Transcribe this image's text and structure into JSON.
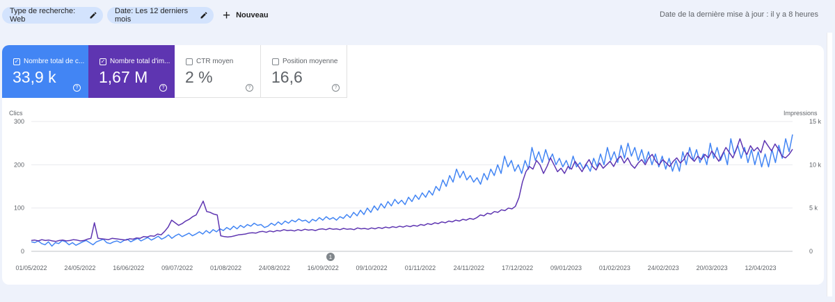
{
  "filters": {
    "search_type": "Type de recherche: Web",
    "date": "Date: Les 12 derniers mois",
    "new_label": "Nouveau"
  },
  "last_update": "Date de la dernière mise à jour : il y a 8 heures",
  "metrics": [
    {
      "label": "Nombre total de c...",
      "value": "33,9 k",
      "checked": true,
      "color": "#4285f4"
    },
    {
      "label": "Nombre total d'im...",
      "value": "1,67 M",
      "checked": true,
      "color": "#5e35b1"
    },
    {
      "label": "CTR moyen",
      "value": "2 %",
      "checked": false
    },
    {
      "label": "Position moyenne",
      "value": "16,6",
      "checked": false
    }
  ],
  "annotation": {
    "label": "1"
  },
  "chart_data": {
    "type": "line",
    "left_axis": {
      "label": "Clics",
      "ticks": [
        "0",
        "100",
        "200",
        "300"
      ],
      "ylim": [
        0,
        300
      ]
    },
    "right_axis": {
      "label": "Impressions",
      "ticks": [
        "0",
        "5 k",
        "10 k",
        "15 k"
      ],
      "ylim": [
        0,
        15000
      ]
    },
    "x_ticks": [
      "01/05/2022",
      "24/05/2022",
      "16/06/2022",
      "09/07/2022",
      "01/08/2022",
      "24/08/2022",
      "16/09/2022",
      "09/10/2022",
      "01/11/2022",
      "24/11/2022",
      "17/12/2022",
      "09/01/2023",
      "01/02/2023",
      "24/02/2023",
      "20/03/2023",
      "12/04/2023"
    ],
    "grid": true,
    "series": [
      {
        "name": "Nombre total de clics",
        "axis": "left",
        "color": "#4285f4",
        "values": [
          22,
          20,
          24,
          18,
          15,
          22,
          12,
          20,
          18,
          25,
          22,
          15,
          20,
          14,
          18,
          22,
          25,
          20,
          15,
          22,
          25,
          28,
          20,
          18,
          22,
          24,
          20,
          25,
          28,
          22,
          26,
          30,
          24,
          28,
          32,
          26,
          30,
          35,
          28,
          32,
          38,
          30,
          36,
          40,
          34,
          38,
          42,
          36,
          40,
          45,
          40,
          48,
          42,
          50,
          45,
          52,
          48,
          55,
          50,
          58,
          52,
          60,
          55,
          62,
          58,
          65,
          60,
          62,
          55,
          58,
          65,
          60,
          68,
          62,
          70,
          65,
          72,
          68,
          75,
          70,
          72,
          66,
          74,
          70,
          78,
          72,
          80,
          74,
          78,
          72,
          80,
          76,
          85,
          78,
          90,
          82,
          95,
          85,
          100,
          90,
          105,
          95,
          110,
          100,
          115,
          105,
          120,
          110,
          118,
          108,
          125,
          115,
          130,
          120,
          135,
          125,
          140,
          130,
          150,
          140,
          165,
          150,
          175,
          160,
          190,
          170,
          185,
          165,
          175,
          160,
          170,
          155,
          180,
          165,
          190,
          175,
          200,
          180,
          220,
          195,
          210,
          185,
          200,
          180,
          210,
          190,
          240,
          210,
          230,
          205,
          235,
          210,
          225,
          200,
          215,
          195,
          210,
          190,
          220,
          195,
          205,
          190,
          200,
          185,
          215,
          195,
          225,
          200,
          240,
          210,
          230,
          205,
          245,
          215,
          250,
          220,
          240,
          210,
          235,
          205,
          230,
          200,
          225,
          195,
          220,
          190,
          215,
          185,
          210,
          185,
          230,
          200,
          240,
          210,
          235,
          205,
          225,
          200,
          250,
          215,
          240,
          210,
          230,
          200,
          260,
          225,
          245,
          215,
          240,
          205,
          235,
          200,
          230,
          195,
          225,
          195,
          235,
          205,
          245,
          215,
          260,
          230,
          270
        ]
      },
      {
        "name": "Nombre total d'impressions",
        "axis": "right",
        "color": "#5e35b1",
        "values": [
          1250,
          1300,
          1200,
          1350,
          1250,
          1300,
          1200,
          1150,
          1250,
          1300,
          1200,
          1250,
          1350,
          1300,
          1200,
          1250,
          1400,
          1500,
          3300,
          1500,
          1450,
          1400,
          1350,
          1500,
          1450,
          1400,
          1350,
          1300,
          1450,
          1400,
          1550,
          1500,
          1700,
          1650,
          1800,
          1750,
          2000,
          1900,
          2300,
          2800,
          3600,
          3300,
          3000,
          3200,
          3500,
          3700,
          4000,
          4200,
          5000,
          5800,
          4600,
          4500,
          4300,
          4200,
          1800,
          1700,
          1650,
          1700,
          1800,
          1900,
          1950,
          2000,
          2100,
          2150,
          2100,
          2250,
          2300,
          2200,
          2350,
          2250,
          2400,
          2350,
          2500,
          2400,
          2450,
          2350,
          2500,
          2400,
          2550,
          2450,
          2500,
          2400,
          2550,
          2600,
          2500,
          2650,
          2550,
          2600,
          2500,
          2650,
          2550,
          2600,
          2500,
          2700,
          2600,
          2650,
          2550,
          2700,
          2600,
          2750,
          2650,
          2800,
          2700,
          2850,
          2750,
          2900,
          2800,
          2950,
          2850,
          3000,
          2900,
          3100,
          3000,
          3200,
          3100,
          3300,
          3200,
          3400,
          3300,
          3500,
          3400,
          3600,
          3500,
          3700,
          3600,
          3800,
          3700,
          3900,
          4200,
          4100,
          4400,
          4300,
          4600,
          4500,
          4800,
          4700,
          5000,
          4900,
          5200,
          6200,
          8000,
          9200,
          9800,
          9500,
          10500,
          10000,
          9000,
          9800,
          10800,
          10000,
          9200,
          9600,
          9000,
          9800,
          9500,
          10400,
          9800,
          9200,
          10000,
          10600,
          9800,
          9400,
          10200,
          9600,
          10000,
          10400,
          9800,
          10600,
          11000,
          10200,
          10800,
          10000,
          9600,
          10200,
          10600,
          10000,
          10800,
          11200,
          10400,
          10000,
          10600,
          10200,
          9800,
          10400,
          10800,
          10200,
          10600,
          11400,
          10800,
          10400,
          11000,
          10600,
          11200,
          10800,
          11600,
          11000,
          10400,
          11200,
          12000,
          11400,
          10800,
          11800,
          13000,
          11800,
          11200,
          12200,
          11600,
          12000,
          11400,
          12800,
          12200,
          11600,
          12400,
          11800,
          11000,
          10800,
          11200,
          11800
        ]
      }
    ]
  }
}
